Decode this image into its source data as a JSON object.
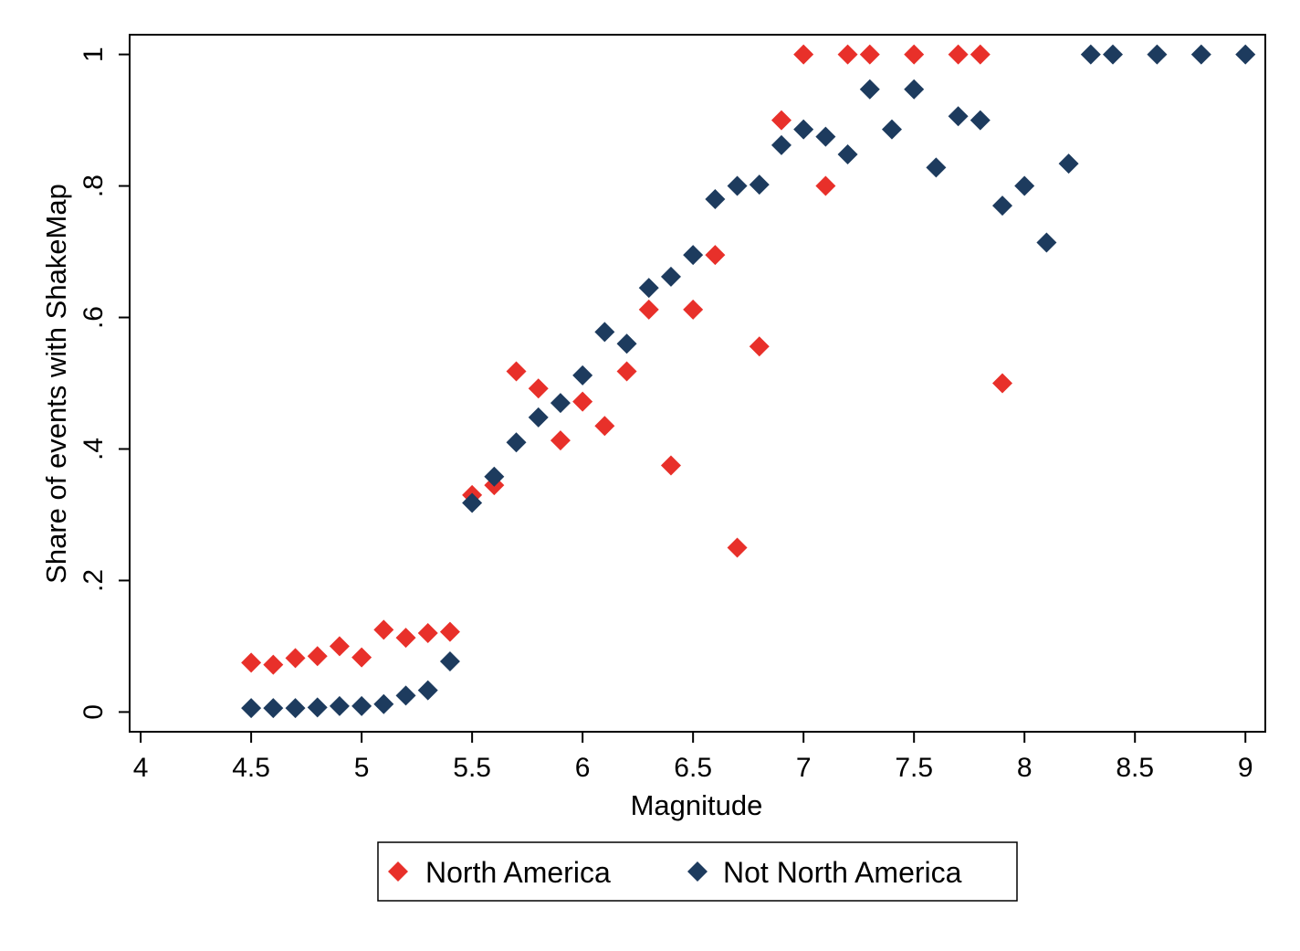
{
  "chart_data": {
    "type": "scatter",
    "title": "",
    "xlabel": "Magnitude",
    "ylabel": "Share of events with ShakeMap",
    "xlim": [
      3.95,
      9.09
    ],
    "ylim": [
      -0.03,
      1.03
    ],
    "x_ticks": [
      4,
      4.5,
      5,
      5.5,
      6,
      6.5,
      7,
      7.5,
      8,
      8.5,
      9
    ],
    "x_tick_labels": [
      "4",
      "4.5",
      "5",
      "5.5",
      "6",
      "6.5",
      "7",
      "7.5",
      "8",
      "8.5",
      "9"
    ],
    "y_ticks": [
      0,
      0.2,
      0.4,
      0.6,
      0.8,
      1
    ],
    "y_tick_labels": [
      "0",
      ".2",
      ".4",
      ".6",
      ".8",
      "1"
    ],
    "grid": false,
    "legend_position": "bottom",
    "marker": "diamond",
    "series": [
      {
        "name": "North America",
        "color": "#e8302a",
        "points": [
          [
            4.5,
            0.075
          ],
          [
            4.6,
            0.072
          ],
          [
            4.7,
            0.082
          ],
          [
            4.8,
            0.085
          ],
          [
            4.9,
            0.1
          ],
          [
            5.0,
            0.083
          ],
          [
            5.1,
            0.125
          ],
          [
            5.2,
            0.113
          ],
          [
            5.3,
            0.12
          ],
          [
            5.4,
            0.122
          ],
          [
            5.5,
            0.33
          ],
          [
            5.6,
            0.345
          ],
          [
            5.7,
            0.518
          ],
          [
            5.8,
            0.492
          ],
          [
            5.9,
            0.413
          ],
          [
            6.0,
            0.472
          ],
          [
            6.1,
            0.435
          ],
          [
            6.2,
            0.518
          ],
          [
            6.3,
            0.612
          ],
          [
            6.4,
            0.375
          ],
          [
            6.5,
            0.612
          ],
          [
            6.6,
            0.695
          ],
          [
            6.7,
            0.25
          ],
          [
            6.8,
            0.556
          ],
          [
            6.9,
            0.9
          ],
          [
            7.0,
            1.0
          ],
          [
            7.1,
            0.8
          ],
          [
            7.2,
            1.0
          ],
          [
            7.3,
            1.0
          ],
          [
            7.5,
            1.0
          ],
          [
            7.7,
            1.0
          ],
          [
            7.8,
            1.0
          ],
          [
            7.9,
            0.5
          ]
        ]
      },
      {
        "name": "Not North America",
        "color": "#1d3b5e",
        "points": [
          [
            4.5,
            0.006
          ],
          [
            4.6,
            0.006
          ],
          [
            4.7,
            0.006
          ],
          [
            4.8,
            0.007
          ],
          [
            4.9,
            0.009
          ],
          [
            5.0,
            0.009
          ],
          [
            5.1,
            0.012
          ],
          [
            5.2,
            0.025
          ],
          [
            5.3,
            0.033
          ],
          [
            5.4,
            0.077
          ],
          [
            5.5,
            0.318
          ],
          [
            5.6,
            0.358
          ],
          [
            5.7,
            0.41
          ],
          [
            5.8,
            0.448
          ],
          [
            5.9,
            0.47
          ],
          [
            6.0,
            0.512
          ],
          [
            6.1,
            0.578
          ],
          [
            6.2,
            0.56
          ],
          [
            6.3,
            0.645
          ],
          [
            6.4,
            0.662
          ],
          [
            6.5,
            0.695
          ],
          [
            6.6,
            0.78
          ],
          [
            6.7,
            0.8
          ],
          [
            6.8,
            0.802
          ],
          [
            6.9,
            0.862
          ],
          [
            7.0,
            0.886
          ],
          [
            7.1,
            0.875
          ],
          [
            7.2,
            0.848
          ],
          [
            7.3,
            0.947
          ],
          [
            7.4,
            0.886
          ],
          [
            7.5,
            0.947
          ],
          [
            7.6,
            0.828
          ],
          [
            7.7,
            0.906
          ],
          [
            7.8,
            0.9
          ],
          [
            7.9,
            0.77
          ],
          [
            8.0,
            0.8
          ],
          [
            8.1,
            0.714
          ],
          [
            8.2,
            0.834
          ],
          [
            8.3,
            1.0
          ],
          [
            8.4,
            1.0
          ],
          [
            8.6,
            1.0
          ],
          [
            8.8,
            1.0
          ],
          [
            9.0,
            1.0
          ]
        ]
      }
    ]
  }
}
